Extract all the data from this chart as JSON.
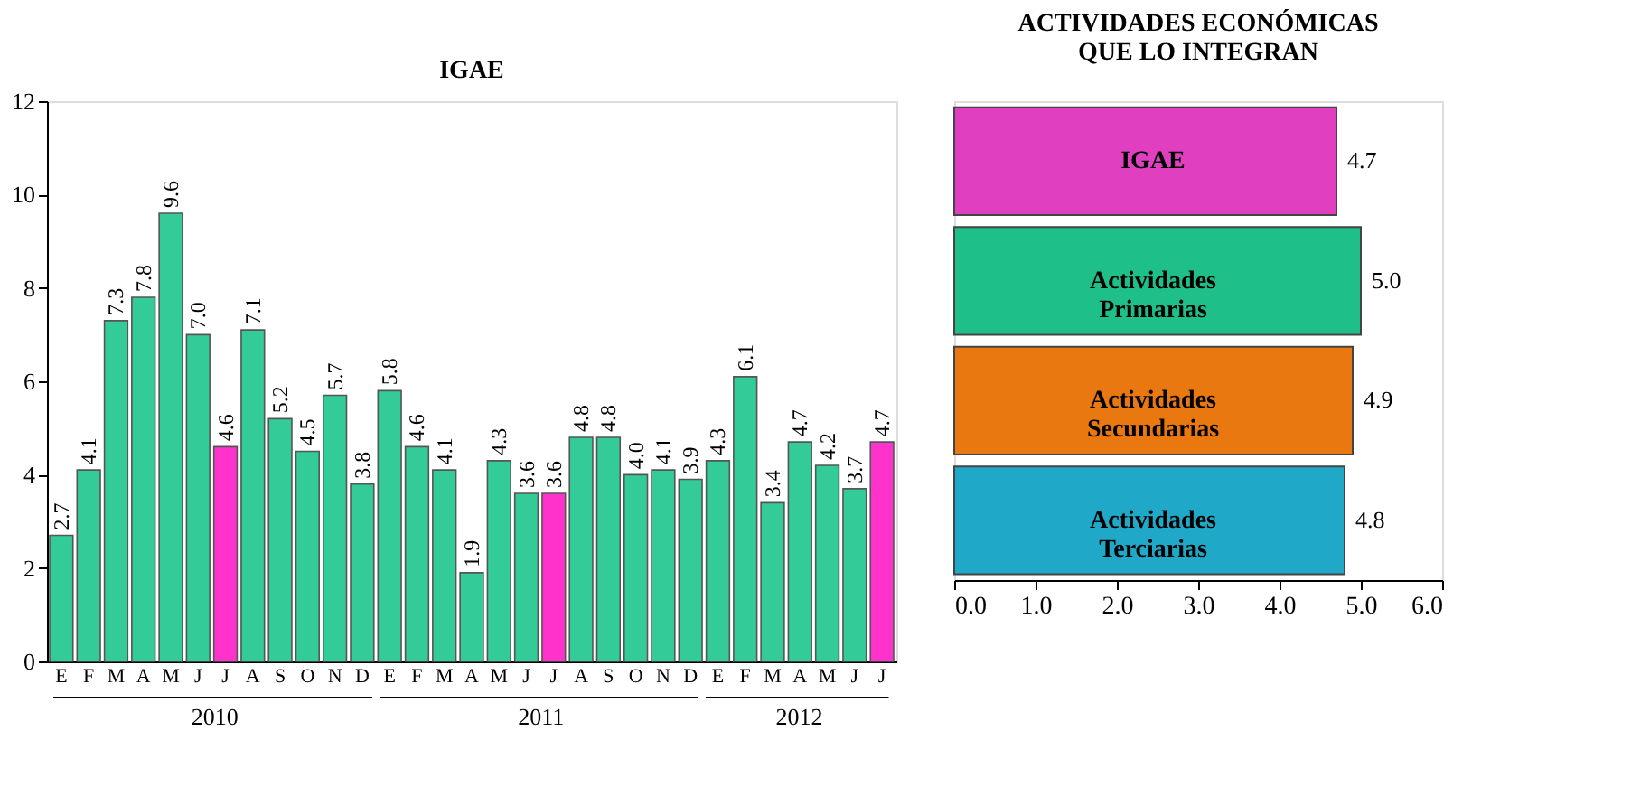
{
  "chart_data": [
    {
      "type": "bar",
      "title": "IGAE",
      "categories": [
        "E",
        "F",
        "M",
        "A",
        "M",
        "J",
        "J",
        "A",
        "S",
        "O",
        "N",
        "D",
        "E",
        "F",
        "M",
        "A",
        "M",
        "J",
        "J",
        "A",
        "S",
        "O",
        "N",
        "D",
        "E",
        "F",
        "M",
        "A",
        "M",
        "J",
        "J"
      ],
      "values": [
        2.7,
        4.1,
        7.3,
        7.8,
        9.6,
        7.0,
        4.6,
        7.1,
        5.2,
        4.5,
        5.7,
        3.8,
        5.8,
        4.6,
        4.1,
        1.9,
        4.3,
        3.6,
        3.6,
        4.8,
        4.8,
        4.0,
        4.1,
        3.9,
        4.3,
        6.1,
        3.4,
        4.7,
        4.2,
        3.7,
        4.7
      ],
      "colors": [
        "#33cc99",
        "#33cc99",
        "#33cc99",
        "#33cc99",
        "#33cc99",
        "#33cc99",
        "#ff33cc",
        "#33cc99",
        "#33cc99",
        "#33cc99",
        "#33cc99",
        "#33cc99",
        "#33cc99",
        "#33cc99",
        "#33cc99",
        "#33cc99",
        "#33cc99",
        "#33cc99",
        "#ff33cc",
        "#33cc99",
        "#33cc99",
        "#33cc99",
        "#33cc99",
        "#33cc99",
        "#33cc99",
        "#33cc99",
        "#33cc99",
        "#33cc99",
        "#33cc99",
        "#33cc99",
        "#ff33cc"
      ],
      "value_labels": [
        "2.7",
        "4.1",
        "7.3",
        "7.8",
        "9.6",
        "7.0",
        "4.6",
        "7.1",
        "5.2",
        "4.5",
        "5.7",
        "3.8",
        "5.8",
        "4.6",
        "4.1",
        "1.9",
        "4.3",
        "3.6",
        "3.6",
        "4.8",
        "4.8",
        "4.0",
        "4.1",
        "3.9",
        "4.3",
        "6.1",
        "3.4",
        "4.7",
        "4.2",
        "3.7",
        "4.7"
      ],
      "ylim": [
        0,
        12
      ],
      "yticks": [
        0,
        2,
        4,
        6,
        8,
        10,
        12
      ],
      "grid": false,
      "legend": false,
      "annotations": [
        "2010",
        "2011",
        "2012"
      ]
    },
    {
      "type": "bar",
      "orientation": "horizontal",
      "title": "ACTIVIDADES ECONÓMICAS\nQUE LO INTEGRAN",
      "categories": [
        "IGAE",
        "Actividades Primarias",
        "Actividades Secundarias",
        "Actividades Terciarias"
      ],
      "values": [
        4.7,
        5.0,
        4.9,
        4.8
      ],
      "colors": [
        "#e040c0",
        "#1fbf8a",
        "#e8780f",
        "#1fa8c8"
      ],
      "xlim": [
        0,
        6
      ],
      "xticks": [
        {
          "value": 0,
          "label": "0.0"
        },
        {
          "value": 1,
          "label": "1.0"
        },
        {
          "value": 2,
          "label": "2.0"
        },
        {
          "value": 3,
          "label": "3.0"
        },
        {
          "value": 4,
          "label": "4.0"
        },
        {
          "value": 5,
          "label": "5.0"
        },
        {
          "value": 6,
          "label": "6.0"
        }
      ],
      "value_labels": [
        "4.7",
        "5.0",
        "4.9",
        "4.8"
      ],
      "grid": false,
      "legend": false
    }
  ]
}
